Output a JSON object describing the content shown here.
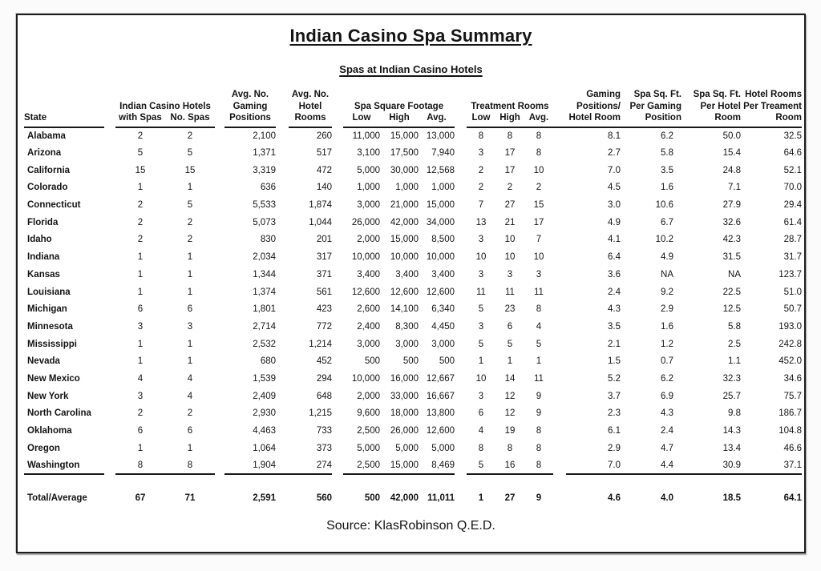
{
  "page": {
    "title": "Indian Casino Spa Summary",
    "subtitle": "Spas at Indian Casino Hotels",
    "source": "Source: KlasRobinson Q.E.D."
  },
  "table": {
    "header": {
      "state": "State",
      "hotels_group": "Indian Casino Hotels",
      "with_spas": "with Spas",
      "no_spas": "No. Spas",
      "avg_no": "Avg. No.",
      "gaming": "Gaming",
      "positions": "Positions",
      "hotel": "Hotel",
      "rooms": "Rooms",
      "spa_footage_group": "Spa Square Footage",
      "treatment_group": "Treatment Rooms",
      "low": "Low",
      "high": "High",
      "avg": "Avg.",
      "positions_slash": "Positions/",
      "hotel_room": "Hotel Room",
      "spa_sqft": "Spa Sq. Ft.",
      "per_gaming": "Per Gaming",
      "position": "Position",
      "per_hotel": "Per Hotel",
      "room": "Room",
      "hotel_rooms": "Hotel Rooms",
      "per_treament": "Per Treament"
    },
    "rows": [
      {
        "state": "Alabama",
        "values": [
          "2",
          "2",
          "2,100",
          "260",
          "11,000",
          "15,000",
          "13,000",
          "8",
          "8",
          "8",
          "8.1",
          "6.2",
          "50.0",
          "32.5"
        ]
      },
      {
        "state": "Arizona",
        "values": [
          "5",
          "5",
          "1,371",
          "517",
          "3,100",
          "17,500",
          "7,940",
          "3",
          "17",
          "8",
          "2.7",
          "5.8",
          "15.4",
          "64.6"
        ]
      },
      {
        "state": "California",
        "values": [
          "15",
          "15",
          "3,319",
          "472",
          "5,000",
          "30,000",
          "12,568",
          "2",
          "17",
          "10",
          "7.0",
          "3.5",
          "24.8",
          "52.1"
        ]
      },
      {
        "state": "Colorado",
        "values": [
          "1",
          "1",
          "636",
          "140",
          "1,000",
          "1,000",
          "1,000",
          "2",
          "2",
          "2",
          "4.5",
          "1.6",
          "7.1",
          "70.0"
        ]
      },
      {
        "state": "Connecticut",
        "values": [
          "2",
          "5",
          "5,533",
          "1,874",
          "3,000",
          "21,000",
          "15,000",
          "7",
          "27",
          "15",
          "3.0",
          "10.6",
          "27.9",
          "29.4"
        ]
      },
      {
        "state": "Florida",
        "values": [
          "2",
          "2",
          "5,073",
          "1,044",
          "26,000",
          "42,000",
          "34,000",
          "13",
          "21",
          "17",
          "4.9",
          "6.7",
          "32.6",
          "61.4"
        ]
      },
      {
        "state": "Idaho",
        "values": [
          "2",
          "2",
          "830",
          "201",
          "2,000",
          "15,000",
          "8,500",
          "3",
          "10",
          "7",
          "4.1",
          "10.2",
          "42.3",
          "28.7"
        ]
      },
      {
        "state": "Indiana",
        "values": [
          "1",
          "1",
          "2,034",
          "317",
          "10,000",
          "10,000",
          "10,000",
          "10",
          "10",
          "10",
          "6.4",
          "4.9",
          "31.5",
          "31.7"
        ]
      },
      {
        "state": "Kansas",
        "values": [
          "1",
          "1",
          "1,344",
          "371",
          "3,400",
          "3,400",
          "3,400",
          "3",
          "3",
          "3",
          "3.6",
          "NA",
          "NA",
          "123.7"
        ]
      },
      {
        "state": "Louisiana",
        "values": [
          "1",
          "1",
          "1,374",
          "561",
          "12,600",
          "12,600",
          "12,600",
          "11",
          "11",
          "11",
          "2.4",
          "9.2",
          "22.5",
          "51.0"
        ]
      },
      {
        "state": "Michigan",
        "values": [
          "6",
          "6",
          "1,801",
          "423",
          "2,600",
          "14,100",
          "6,340",
          "5",
          "23",
          "8",
          "4.3",
          "2.9",
          "12.5",
          "50.7"
        ]
      },
      {
        "state": "Minnesota",
        "values": [
          "3",
          "3",
          "2,714",
          "772",
          "2,400",
          "8,300",
          "4,450",
          "3",
          "6",
          "4",
          "3.5",
          "1.6",
          "5.8",
          "193.0"
        ]
      },
      {
        "state": "Mississippi",
        "values": [
          "1",
          "1",
          "2,532",
          "1,214",
          "3,000",
          "3,000",
          "3,000",
          "5",
          "5",
          "5",
          "2.1",
          "1.2",
          "2.5",
          "242.8"
        ]
      },
      {
        "state": "Nevada",
        "values": [
          "1",
          "1",
          "680",
          "452",
          "500",
          "500",
          "500",
          "1",
          "1",
          "1",
          "1.5",
          "0.7",
          "1.1",
          "452.0"
        ]
      },
      {
        "state": "New Mexico",
        "values": [
          "4",
          "4",
          "1,539",
          "294",
          "10,000",
          "16,000",
          "12,667",
          "10",
          "14",
          "11",
          "5.2",
          "6.2",
          "32.3",
          "34.6"
        ]
      },
      {
        "state": "New York",
        "values": [
          "3",
          "4",
          "2,409",
          "648",
          "2,000",
          "33,000",
          "16,667",
          "3",
          "12",
          "9",
          "3.7",
          "6.9",
          "25.7",
          "75.7"
        ]
      },
      {
        "state": "North Carolina",
        "values": [
          "2",
          "2",
          "2,930",
          "1,215",
          "9,600",
          "18,000",
          "13,800",
          "6",
          "12",
          "9",
          "2.3",
          "4.3",
          "9.8",
          "186.7"
        ]
      },
      {
        "state": "Oklahoma",
        "values": [
          "6",
          "6",
          "4,463",
          "733",
          "2,500",
          "26,000",
          "12,600",
          "4",
          "19",
          "8",
          "6.1",
          "2.4",
          "14.3",
          "104.8"
        ]
      },
      {
        "state": "Oregon",
        "values": [
          "1",
          "1",
          "1,064",
          "373",
          "5,000",
          "5,000",
          "5,000",
          "8",
          "8",
          "8",
          "2.9",
          "4.7",
          "13.4",
          "46.6"
        ]
      },
      {
        "state": "Washington",
        "values": [
          "8",
          "8",
          "1,904",
          "274",
          "2,500",
          "15,000",
          "8,469",
          "5",
          "16",
          "8",
          "7.0",
          "4.4",
          "30.9",
          "37.1"
        ]
      }
    ],
    "total": {
      "state": "Total/Average",
      "values": [
        "67",
        "71",
        "2,591",
        "560",
        "500",
        "42,000",
        "11,011",
        "1",
        "27",
        "9",
        "4.6",
        "4.0",
        "18.5",
        "64.1"
      ]
    }
  }
}
